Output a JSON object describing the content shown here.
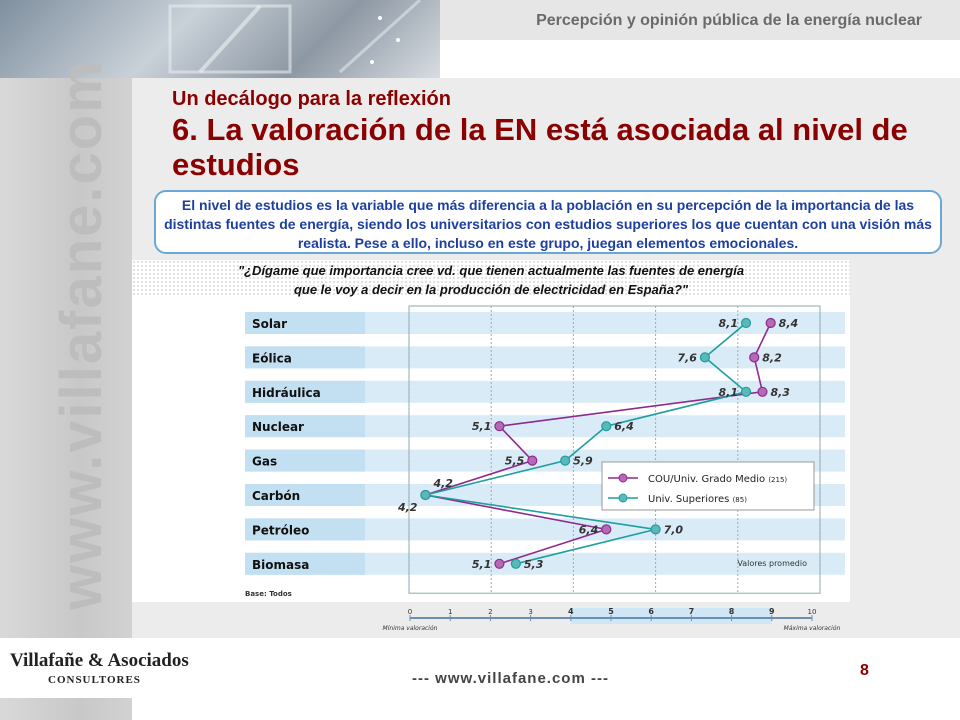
{
  "header": {
    "title": "Percepción y opinión pública de la energía nuclear"
  },
  "watermark": "www.villafane.com",
  "slide": {
    "subtitle": "Un decálogo para la reflexión",
    "title": "6. La valoración de la EN está asociada al nivel de estudios",
    "intro": "El nivel de estudios es la variable que más diferencia a la población en su percepción de la importancia de las distintas fuentes de energía, siendo los universitarios con estudios superiores los que cuentan con una visión más realista. Pese a ello, incluso en este grupo, juegan elementos emocionales."
  },
  "chart_data": {
    "type": "line",
    "question_line1": "\"¿Dígame que importancia cree vd. que tienen actualmente las fuentes de energía",
    "question_line2": "que le voy a decir en la producción de electricidad en España?\"",
    "categories": [
      "Solar",
      "Eólica",
      "Hidráulica",
      "Nuclear",
      "Gas",
      "Carbón",
      "Petróleo",
      "Biomasa"
    ],
    "series": [
      {
        "name": "COU/Univ. Grado Medio",
        "n": "(215)",
        "color": "#8e2a8e",
        "marker": "#b46ab4",
        "values": [
          8.4,
          8.2,
          8.3,
          5.1,
          5.5,
          4.2,
          6.4,
          5.1
        ],
        "labels": [
          "8,4",
          "8,2",
          "8,3",
          "5,1",
          "5,5",
          "4,2",
          "6,4",
          "5,1"
        ]
      },
      {
        "name": "Univ. Superiores",
        "n": "(85)",
        "color": "#1f9e9e",
        "marker": "#5ab8b8",
        "values": [
          8.1,
          7.6,
          8.1,
          6.4,
          5.9,
          4.2,
          7.0,
          5.3
        ],
        "labels": [
          "8,1",
          "7,6",
          "8,1",
          "6,4",
          "5,9",
          "4,2",
          "7,0",
          "5,3"
        ]
      }
    ],
    "x_ticks": [
      "4,0",
      "5,0",
      "6,0",
      "7,0",
      "8,0",
      "9,0"
    ],
    "xlim": [
      4.0,
      9.0
    ],
    "annotation": "Valores promedio",
    "base_note": "Base: Todos",
    "scale_ticks": [
      "0",
      "1",
      "2",
      "3",
      "4",
      "5",
      "6",
      "7",
      "8",
      "9",
      "10"
    ],
    "scale_min_label": "Mínima valoración",
    "scale_max_label": "Máxima valoración"
  },
  "footer": {
    "logo_main": "Villafañe & Asociados",
    "logo_sub": "CONSULTORES",
    "url": "--- www.villafane.com ---",
    "page": "8"
  }
}
